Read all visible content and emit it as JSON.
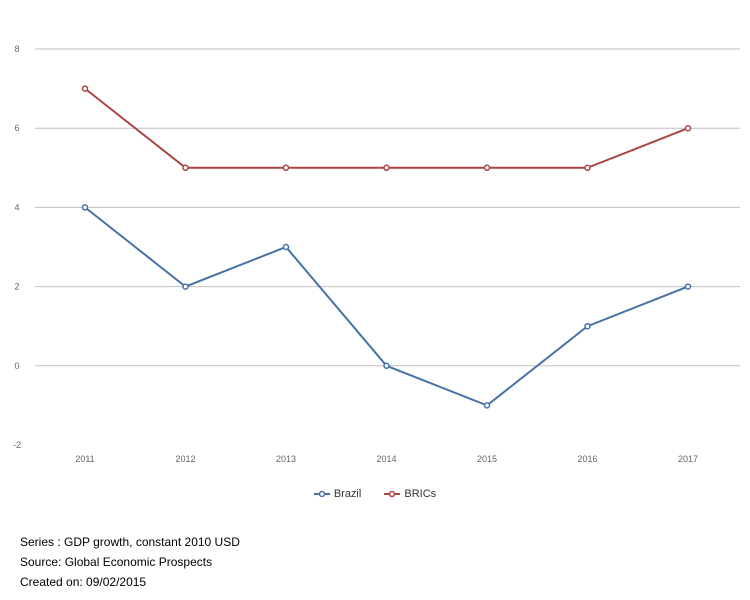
{
  "chart_data": {
    "type": "line",
    "title": "",
    "xlabel": "",
    "ylabel": "",
    "categories": [
      "2011",
      "2012",
      "2013",
      "2014",
      "2015",
      "2016",
      "2017"
    ],
    "ylim": [
      -2,
      8
    ],
    "yticks": [
      -2,
      0,
      2,
      4,
      6,
      8
    ],
    "grid": true,
    "legend_position": "bottom-center",
    "series": [
      {
        "name": "Brazil",
        "color": "#4572a7",
        "values": [
          4,
          2,
          3,
          0,
          -1,
          1,
          2
        ]
      },
      {
        "name": "BRICs",
        "color": "#aa4643",
        "values": [
          7,
          5,
          5,
          5,
          5,
          5,
          6
        ]
      }
    ]
  },
  "notes": {
    "series": "Series : GDP growth, constant 2010 USD",
    "source": "Source: Global Economic Prospects",
    "created": "Created on: 09/02/2015"
  }
}
